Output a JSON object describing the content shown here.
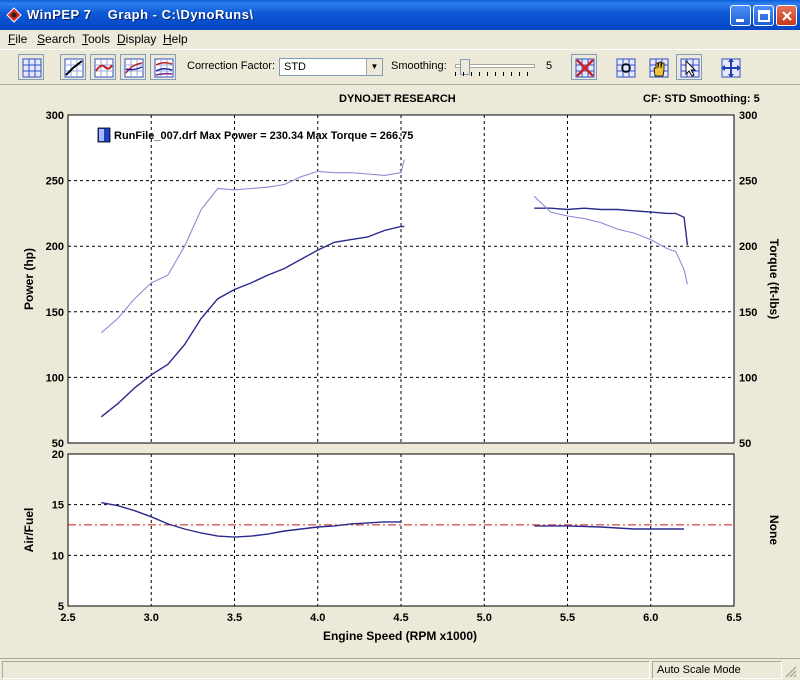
{
  "window": {
    "title": "WinPEP 7    Graph - C:\\DynoRuns\\"
  },
  "menu": {
    "items": [
      {
        "label": "File",
        "mnemonic": "F"
      },
      {
        "label": "Search",
        "mnemonic": "S"
      },
      {
        "label": "Tools",
        "mnemonic": "T"
      },
      {
        "label": "Display",
        "mnemonic": "D"
      },
      {
        "label": "Help",
        "mnemonic": "H"
      }
    ]
  },
  "toolbar": {
    "correction_label": "Correction Factor:",
    "correction_value": "STD",
    "smoothing_label": "Smoothing:",
    "smoothing_value": "5",
    "smoothing_level_fraction": 0.05
  },
  "chart_header": {
    "company": "DYNOJET RESEARCH",
    "info": "CF: STD  Smoothing: 5"
  },
  "status": {
    "mode": "Auto Scale Mode"
  },
  "colors": {
    "title_bar": "#0a5fd8",
    "series_dark": "#2a2a8c",
    "series_light": "#8a8ad8",
    "reference_line": "#c02020",
    "legend_swatch": "#1a3fbf"
  },
  "chart_data": [
    {
      "type": "line",
      "panel": "upper",
      "legend": "RunFile_007.drf Max Power = 230.34 Max Torque = 266.75",
      "ylabel": "Power (hp)",
      "y2label": "Torque (ft-lbs)",
      "ylim": [
        50,
        300
      ],
      "y2lim": [
        50,
        300
      ],
      "yticks": [
        50,
        100,
        150,
        200,
        250,
        300
      ],
      "xlim": [
        2.5,
        6.5
      ],
      "grid": true,
      "series": [
        {
          "role": "power",
          "color_key": "series_dark",
          "segments": [
            [
              [
                2.7,
                70
              ],
              [
                2.8,
                80
              ],
              [
                2.9,
                92
              ],
              [
                3.0,
                102
              ],
              [
                3.1,
                110
              ],
              [
                3.2,
                125
              ],
              [
                3.3,
                145
              ],
              [
                3.4,
                160
              ],
              [
                3.5,
                167
              ],
              [
                3.6,
                172
              ],
              [
                3.7,
                178
              ],
              [
                3.8,
                183
              ],
              [
                3.9,
                190
              ],
              [
                4.0,
                197
              ],
              [
                4.1,
                203
              ],
              [
                4.2,
                205
              ],
              [
                4.3,
                207
              ],
              [
                4.4,
                212
              ],
              [
                4.5,
                215
              ],
              [
                4.52,
                215
              ]
            ],
            [
              [
                5.3,
                229
              ],
              [
                5.4,
                229
              ],
              [
                5.5,
                228
              ],
              [
                5.6,
                229
              ],
              [
                5.7,
                228
              ],
              [
                5.8,
                228
              ],
              [
                5.9,
                227
              ],
              [
                6.0,
                226
              ],
              [
                6.1,
                225
              ],
              [
                6.15,
                225
              ],
              [
                6.2,
                222
              ],
              [
                6.22,
                201
              ]
            ]
          ]
        },
        {
          "role": "torque",
          "color_key": "series_light",
          "segments": [
            [
              [
                2.7,
                134
              ],
              [
                2.8,
                145
              ],
              [
                2.9,
                160
              ],
              [
                3.0,
                172
              ],
              [
                3.1,
                178
              ],
              [
                3.2,
                200
              ],
              [
                3.3,
                228
              ],
              [
                3.4,
                244
              ],
              [
                3.5,
                243
              ],
              [
                3.6,
                244
              ],
              [
                3.7,
                245
              ],
              [
                3.8,
                247
              ],
              [
                3.9,
                253
              ],
              [
                4.0,
                257
              ],
              [
                4.1,
                256
              ],
              [
                4.2,
                256
              ],
              [
                4.3,
                255
              ],
              [
                4.4,
                254
              ],
              [
                4.5,
                256
              ],
              [
                4.52,
                266
              ]
            ],
            [
              [
                5.3,
                238
              ],
              [
                5.4,
                226
              ],
              [
                5.5,
                223
              ],
              [
                5.6,
                221
              ],
              [
                5.7,
                218
              ],
              [
                5.8,
                213
              ],
              [
                5.9,
                210
              ],
              [
                6.0,
                205
              ],
              [
                6.1,
                198
              ],
              [
                6.15,
                196
              ],
              [
                6.2,
                182
              ],
              [
                6.22,
                171
              ]
            ]
          ]
        }
      ]
    },
    {
      "type": "line",
      "panel": "lower",
      "ylabel": "Air/Fuel",
      "y2label": "None",
      "xlabel": "Engine Speed (RPM x1000)",
      "xticks": [
        2.5,
        3.0,
        3.5,
        4.0,
        4.5,
        5.0,
        5.5,
        6.0,
        6.5
      ],
      "ylim": [
        5,
        20
      ],
      "yticks": [
        5,
        10,
        15,
        20
      ],
      "xlim": [
        2.5,
        6.5
      ],
      "reference_line": 13.0,
      "grid": true,
      "series": [
        {
          "role": "air_fuel",
          "color_key": "series_dark",
          "segments": [
            [
              [
                2.7,
                15.2
              ],
              [
                2.8,
                14.9
              ],
              [
                2.9,
                14.4
              ],
              [
                3.0,
                13.8
              ],
              [
                3.1,
                13.1
              ],
              [
                3.2,
                12.6
              ],
              [
                3.3,
                12.2
              ],
              [
                3.4,
                11.9
              ],
              [
                3.5,
                11.8
              ],
              [
                3.6,
                11.9
              ],
              [
                3.7,
                12.1
              ],
              [
                3.8,
                12.4
              ],
              [
                3.9,
                12.6
              ],
              [
                4.0,
                12.8
              ],
              [
                4.1,
                12.9
              ],
              [
                4.2,
                13.1
              ],
              [
                4.3,
                13.2
              ],
              [
                4.4,
                13.3
              ],
              [
                4.5,
                13.3
              ]
            ],
            [
              [
                5.3,
                12.9
              ],
              [
                5.5,
                12.9
              ],
              [
                5.7,
                12.8
              ],
              [
                5.9,
                12.6
              ],
              [
                6.1,
                12.6
              ],
              [
                6.2,
                12.6
              ]
            ]
          ]
        }
      ]
    }
  ]
}
